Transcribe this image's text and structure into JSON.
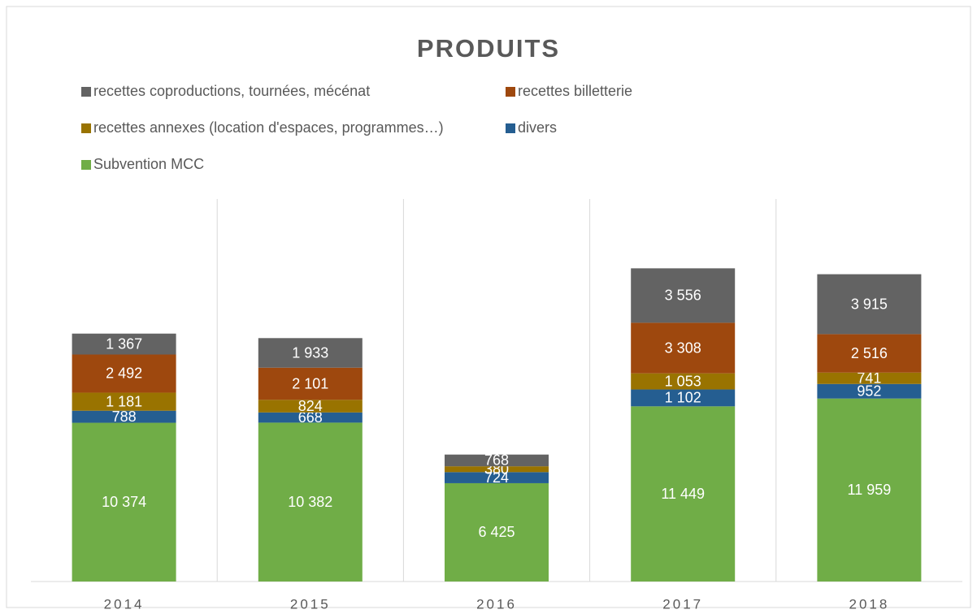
{
  "chart_data": {
    "type": "stacked_bar",
    "title": "PRODUITS",
    "categories": [
      "2014",
      "2015",
      "2016",
      "2017",
      "2018"
    ],
    "series": [
      {
        "name": "recettes coproductions, tournées, mécénat",
        "color": "#636363",
        "values": [
          1367,
          1933,
          768,
          3556,
          3915
        ],
        "value_labels": [
          "1 367",
          "1 933",
          "768",
          "3 556",
          "3 915"
        ]
      },
      {
        "name": "recettes billetterie",
        "color": "#9e480e",
        "values": [
          2492,
          2101,
          0,
          3308,
          2516
        ],
        "value_labels": [
          "2 492",
          "2 101",
          null,
          "3 308",
          "2 516"
        ]
      },
      {
        "name": "recettes annexes (location d'espaces, programmes…)",
        "color": "#997300",
        "values": [
          1181,
          824,
          380,
          1053,
          741
        ],
        "value_labels": [
          "1 181",
          "824",
          "380",
          "1 053",
          "741"
        ]
      },
      {
        "name": "divers",
        "color": "#255e91",
        "values": [
          788,
          668,
          724,
          1102,
          952
        ],
        "value_labels": [
          "788",
          "668",
          "724",
          "1 102",
          "952"
        ]
      },
      {
        "name": "Subvention MCC",
        "color": "#70ad47",
        "values": [
          10374,
          10382,
          6425,
          11449,
          11959
        ],
        "value_labels": [
          "10 374",
          "10 382",
          "6 425",
          "11 449",
          "11 959"
        ]
      }
    ],
    "ylim": [
      0,
      25000
    ]
  }
}
